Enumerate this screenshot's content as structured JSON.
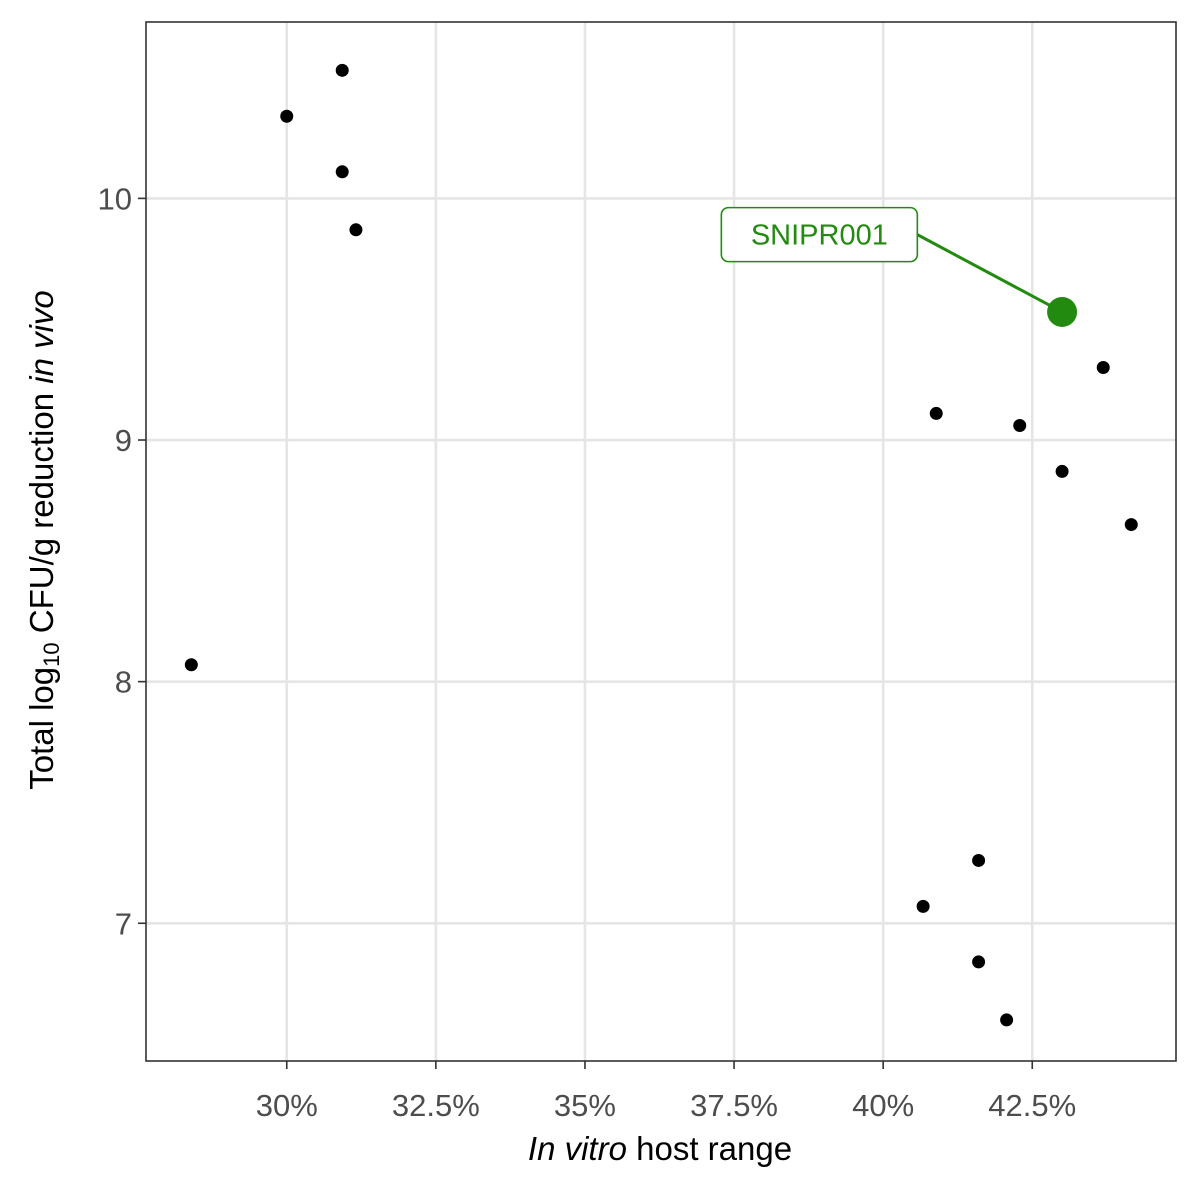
{
  "chart_data": {
    "type": "scatter",
    "title": "",
    "xlabel_italic": "In vitro",
    "xlabel_rest": " host range",
    "ylabel_prefix": "Total log",
    "ylabel_subscript": "10",
    "ylabel_middle": " CFU/g reduction ",
    "ylabel_italic": "in vivo",
    "x_ticks": [
      {
        "value": 30,
        "label": "30%"
      },
      {
        "value": 32.5,
        "label": "32.5%"
      },
      {
        "value": 35,
        "label": "35%"
      },
      {
        "value": 37.5,
        "label": "37.5%"
      },
      {
        "value": 40,
        "label": "40%"
      },
      {
        "value": 42.5,
        "label": "42.5%"
      }
    ],
    "y_ticks": [
      {
        "value": 7,
        "label": "7"
      },
      {
        "value": 8,
        "label": "8"
      },
      {
        "value": 9,
        "label": "9"
      },
      {
        "value": 10,
        "label": "10"
      }
    ],
    "xlim": [
      27.64,
      44.91
    ],
    "ylim": [
      6.43,
      10.73
    ],
    "grid": true,
    "point_color": "#000000",
    "points": [
      {
        "x": 28.4,
        "y": 8.07
      },
      {
        "x": 30.0,
        "y": 10.34
      },
      {
        "x": 30.93,
        "y": 10.53
      },
      {
        "x": 30.93,
        "y": 10.11
      },
      {
        "x": 31.16,
        "y": 9.87
      },
      {
        "x": 40.67,
        "y": 7.07
      },
      {
        "x": 40.89,
        "y": 9.11
      },
      {
        "x": 41.6,
        "y": 7.26
      },
      {
        "x": 41.6,
        "y": 6.84
      },
      {
        "x": 42.07,
        "y": 6.6
      },
      {
        "x": 42.29,
        "y": 9.06
      },
      {
        "x": 43.0,
        "y": 8.87
      },
      {
        "x": 43.69,
        "y": 9.3
      },
      {
        "x": 44.16,
        "y": 8.65
      }
    ],
    "highlight": {
      "label": "SNIPR001",
      "x": 43.0,
      "y": 9.53,
      "color": "#228b0f",
      "label_x": 38.93,
      "label_y": 9.85
    }
  }
}
